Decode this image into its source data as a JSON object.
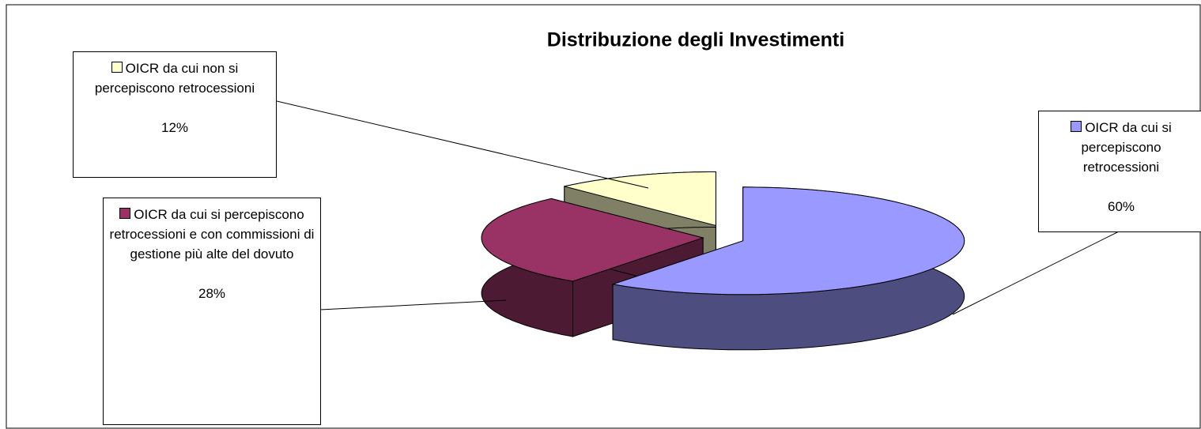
{
  "chart_data": {
    "type": "pie3d",
    "title": "Distribuzione degli Investimenti",
    "categories": [
      "OICR da cui si percepiscono retrocessioni",
      "OICR da cui si percepiscono retrocessioni e con commissioni di gestione più alte del dovuto",
      "OICR da cui non si percepiscono retrocessioni"
    ],
    "values": [
      60,
      28,
      12
    ],
    "value_labels": [
      "60%",
      "28%",
      "12%"
    ],
    "colors": [
      "#9999ff",
      "#993366",
      "#ffffcc"
    ]
  }
}
